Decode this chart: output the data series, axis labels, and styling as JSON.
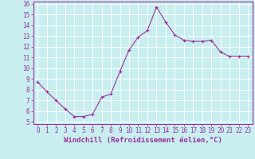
{
  "x": [
    0,
    1,
    2,
    3,
    4,
    5,
    6,
    7,
    8,
    9,
    10,
    11,
    12,
    13,
    14,
    15,
    16,
    17,
    18,
    19,
    20,
    21,
    22,
    23
  ],
  "y": [
    8.7,
    7.8,
    7.0,
    6.2,
    5.5,
    5.5,
    5.7,
    7.3,
    7.6,
    9.7,
    11.7,
    12.9,
    13.5,
    15.7,
    14.3,
    13.1,
    12.6,
    12.5,
    12.5,
    12.6,
    11.5,
    11.1,
    11.1,
    11.1
  ],
  "line_color": "#993399",
  "marker": "+",
  "marker_size": 3,
  "bg_color": "#c8eef0",
  "grid_color": "#ffffff",
  "xlabel": "Windchill (Refroidissement éolien,°C)",
  "xlabel_color": "#993399",
  "axis_color": "#993399",
  "tick_color": "#993399",
  "ylim": [
    5,
    16
  ],
  "xlim": [
    0,
    23
  ],
  "yticks": [
    5,
    6,
    7,
    8,
    9,
    10,
    11,
    12,
    13,
    14,
    15,
    16
  ],
  "xticks": [
    0,
    1,
    2,
    3,
    4,
    5,
    6,
    7,
    8,
    9,
    10,
    11,
    12,
    13,
    14,
    15,
    16,
    17,
    18,
    19,
    20,
    21,
    22,
    23
  ],
  "tick_fontsize": 5.5,
  "xlabel_fontsize": 6.5,
  "linewidth": 0.8,
  "markeredgewidth": 0.8
}
